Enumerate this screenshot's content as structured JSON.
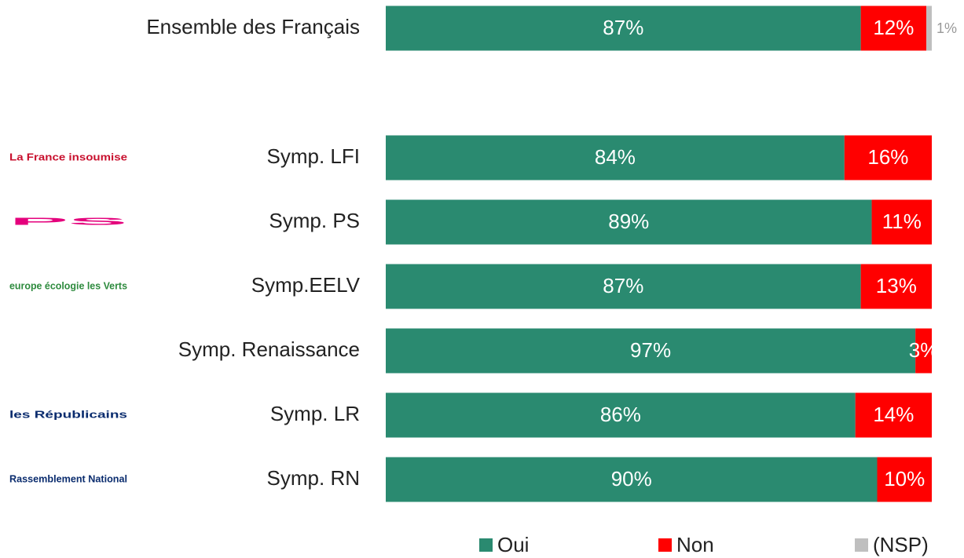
{
  "chart_data": {
    "type": "stacked-bar-horizontal",
    "categories": [
      "Ensemble des Français",
      "Symp. LFI",
      "Symp. PS",
      "Symp.EELV",
      "Symp. Renaissance",
      "Symp. LR",
      "Symp. RN"
    ],
    "logos": [
      null,
      "La France insoumise",
      "PS",
      "europe écologie les Verts",
      null,
      "les Républicains",
      "Rassemblement National"
    ],
    "series": [
      {
        "name": "Oui",
        "color": "#2a8a70",
        "values": [
          87,
          84,
          89,
          87,
          97,
          86,
          90
        ],
        "value_labels": [
          "87%",
          "84%",
          "89%",
          "87%",
          "97%",
          "86%",
          "90%"
        ]
      },
      {
        "name": "Non",
        "color": "#ff0000",
        "values": [
          12,
          16,
          11,
          13,
          3,
          14,
          10
        ],
        "value_labels": [
          "12%",
          "16%",
          "11%",
          "13%",
          "3%",
          "14%",
          "10%"
        ]
      },
      {
        "name": "(NSP)",
        "color": "#bfbfbf",
        "values": [
          1,
          null,
          null,
          null,
          null,
          null,
          null
        ],
        "value_labels": [
          "1%",
          null,
          null,
          null,
          null,
          null,
          null
        ]
      }
    ],
    "xlim": [
      0,
      100
    ]
  }
}
